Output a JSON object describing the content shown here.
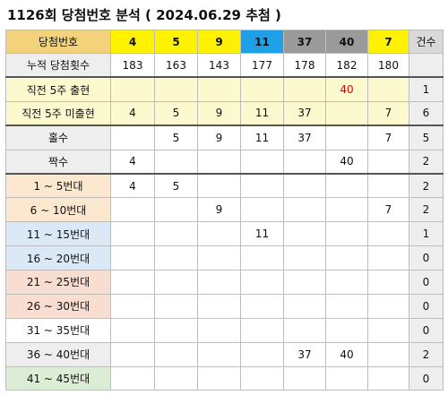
{
  "title": "1126회 당첨번호 분석 ( 2024.06.29 추첨 )",
  "header": {
    "label": "당첨번호",
    "numbers": [
      "4",
      "5",
      "9",
      "11",
      "37",
      "40",
      "7"
    ],
    "count_label": "건수"
  },
  "rows": [
    {
      "label": "누적 당첨횟수",
      "cells": [
        "183",
        "163",
        "143",
        "177",
        "178",
        "182",
        "180"
      ],
      "count": ""
    },
    {
      "label": "직전 5주 출현",
      "cells": [
        "",
        "",
        "",
        "",
        "",
        "40",
        ""
      ],
      "count": "1"
    },
    {
      "label": "직전 5주 미출현",
      "cells": [
        "4",
        "5",
        "9",
        "11",
        "37",
        "",
        "7"
      ],
      "count": "6"
    },
    {
      "label": "홀수",
      "cells": [
        "",
        "5",
        "9",
        "11",
        "37",
        "",
        "7"
      ],
      "count": "5"
    },
    {
      "label": "짝수",
      "cells": [
        "4",
        "",
        "",
        "",
        "",
        "40",
        ""
      ],
      "count": "2"
    },
    {
      "label": "1 ~ 5번대",
      "cells": [
        "4",
        "5",
        "",
        "",
        "",
        "",
        ""
      ],
      "count": "2"
    },
    {
      "label": "6 ~ 10번대",
      "cells": [
        "",
        "",
        "9",
        "",
        "",
        "",
        "7"
      ],
      "count": "2"
    },
    {
      "label": "11 ~ 15번대",
      "cells": [
        "",
        "",
        "",
        "11",
        "",
        "",
        ""
      ],
      "count": "1"
    },
    {
      "label": "16 ~ 20번대",
      "cells": [
        "",
        "",
        "",
        "",
        "",
        "",
        ""
      ],
      "count": "0"
    },
    {
      "label": "21 ~ 25번대",
      "cells": [
        "",
        "",
        "",
        "",
        "",
        "",
        ""
      ],
      "count": "0"
    },
    {
      "label": "26 ~ 30번대",
      "cells": [
        "",
        "",
        "",
        "",
        "",
        "",
        ""
      ],
      "count": "0"
    },
    {
      "label": "31 ~ 35번대",
      "cells": [
        "",
        "",
        "",
        "",
        "",
        "",
        ""
      ],
      "count": "0"
    },
    {
      "label": "36 ~ 40번대",
      "cells": [
        "",
        "",
        "",
        "",
        "37",
        "40",
        ""
      ],
      "count": "2"
    },
    {
      "label": "41 ~ 45번대",
      "cells": [
        "",
        "",
        "",
        "",
        "",
        "",
        ""
      ],
      "count": "0"
    }
  ],
  "colors": {
    "header_label": "#f2d27a",
    "header_yellow": "#fff200",
    "header_blue": "#1fa0e6",
    "header_gray": "#9a9a9a",
    "highlight_red": "#e00000"
  }
}
